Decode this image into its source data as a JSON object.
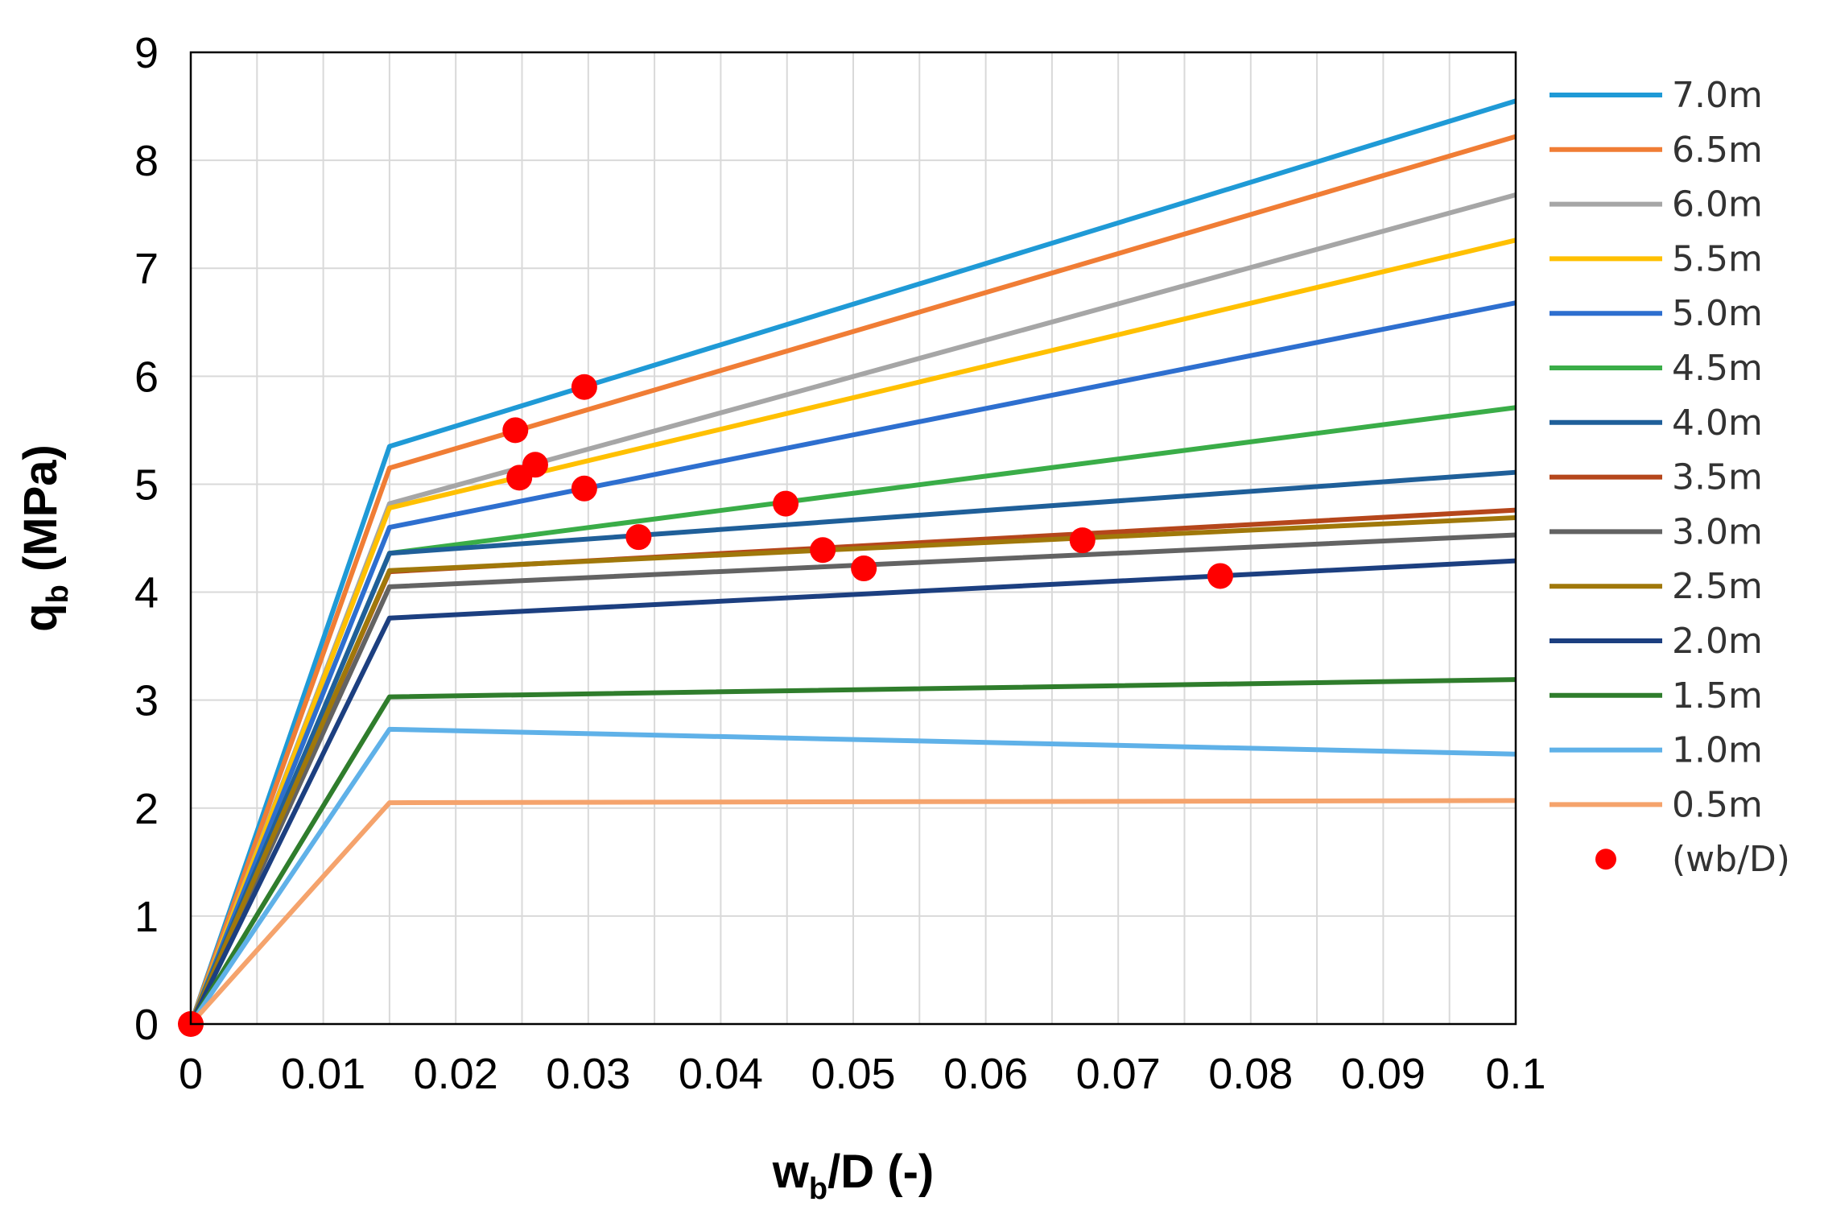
{
  "chart_data": {
    "type": "line",
    "xlabel_main": "w",
    "xlabel_sub": "b",
    "xlabel_rest": "/D (-)",
    "ylabel_main": "q",
    "ylabel_sub": "b",
    "ylabel_rest": " (MPa)",
    "xlim": [
      0,
      0.1
    ],
    "ylim": [
      0,
      9
    ],
    "x_ticks": [
      "0",
      "0.01",
      "0.02",
      "0.03",
      "0.04",
      "0.05",
      "0.06",
      "0.07",
      "0.08",
      "0.09",
      "0.1"
    ],
    "y_ticks": [
      "0",
      "1",
      "2",
      "3",
      "4",
      "5",
      "6",
      "7",
      "8",
      "9"
    ],
    "x_minor_gridlines": true,
    "grid": true,
    "legend_position": "right",
    "series": [
      {
        "name": "7.0m",
        "color": "#1f9ad6",
        "x": [
          0,
          0.015,
          0.1
        ],
        "y": [
          0,
          5.35,
          8.55
        ]
      },
      {
        "name": "6.5m",
        "color": "#f07d35",
        "x": [
          0,
          0.015,
          0.1
        ],
        "y": [
          0,
          5.15,
          8.22
        ]
      },
      {
        "name": "6.0m",
        "color": "#a6a6a6",
        "x": [
          0,
          0.015,
          0.1
        ],
        "y": [
          0,
          4.82,
          7.68
        ]
      },
      {
        "name": "5.5m",
        "color": "#ffc000",
        "x": [
          0,
          0.015,
          0.1
        ],
        "y": [
          0,
          4.78,
          7.26
        ]
      },
      {
        "name": "5.0m",
        "color": "#2e6fcf",
        "x": [
          0,
          0.015,
          0.1
        ],
        "y": [
          0,
          4.6,
          6.68
        ]
      },
      {
        "name": "4.5m",
        "color": "#3aad48",
        "x": [
          0,
          0.015,
          0.1
        ],
        "y": [
          0,
          4.36,
          5.71
        ]
      },
      {
        "name": "4.0m",
        "color": "#1f5f99",
        "x": [
          0,
          0.015,
          0.1
        ],
        "y": [
          0,
          4.36,
          5.11
        ]
      },
      {
        "name": "3.5m",
        "color": "#b5461b",
        "x": [
          0,
          0.015,
          0.1
        ],
        "y": [
          0,
          4.19,
          4.76
        ]
      },
      {
        "name": "3.0m",
        "color": "#636363",
        "x": [
          0,
          0.015,
          0.1
        ],
        "y": [
          0,
          4.05,
          4.53
        ]
      },
      {
        "name": "2.5m",
        "color": "#a0780a",
        "x": [
          0,
          0.015,
          0.1
        ],
        "y": [
          0,
          4.2,
          4.69
        ]
      },
      {
        "name": "2.0m",
        "color": "#1c3f80",
        "x": [
          0,
          0.015,
          0.1
        ],
        "y": [
          0,
          3.76,
          4.29
        ]
      },
      {
        "name": "1.5m",
        "color": "#2f7d2c",
        "x": [
          0,
          0.015,
          0.1
        ],
        "y": [
          0,
          3.03,
          3.19
        ]
      },
      {
        "name": "1.0m",
        "color": "#5fb1e8",
        "x": [
          0,
          0.015,
          0.1
        ],
        "y": [
          0,
          2.73,
          2.5
        ]
      },
      {
        "name": "0.5m",
        "color": "#f5a36c",
        "x": [
          0,
          0.015,
          0.1
        ],
        "y": [
          0,
          2.05,
          2.07
        ]
      }
    ],
    "scatter": {
      "name": "(wb/D)",
      "color": "#ff0000",
      "x": [
        0,
        0.0297,
        0.0245,
        0.0248,
        0.026,
        0.0297,
        0.0338,
        0.0449,
        0.0477,
        0.0508,
        0.0673,
        0.0777
      ],
      "y": [
        0,
        5.9,
        5.5,
        5.06,
        5.18,
        4.96,
        4.51,
        4.82,
        4.39,
        4.22,
        4.48,
        4.15
      ]
    }
  }
}
